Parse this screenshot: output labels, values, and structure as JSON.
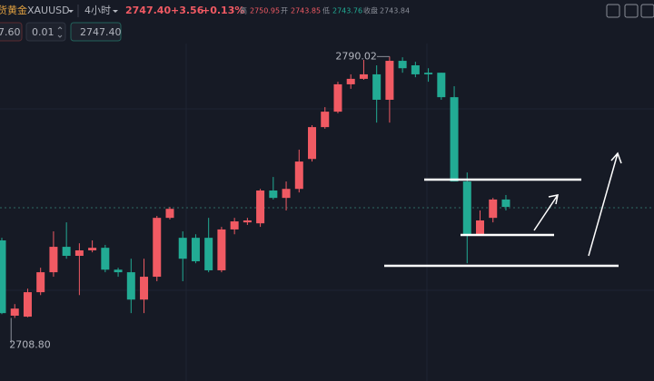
{
  "header": {
    "name": "现货黄金",
    "symbol": "XAUUSD",
    "interval": "4小时",
    "last": "2747.40",
    "change": "+3.56",
    "change_pct": "+0.13%",
    "high_label": "高",
    "high": "2750.95",
    "open_label": "开",
    "open": "2743.85",
    "low_label": "低",
    "low": "2743.76",
    "close_label": "收盘",
    "close": "2743.84"
  },
  "order_bar": {
    "sell_price": "7.60",
    "quantity": "0.01",
    "buy_price": "2747.40"
  },
  "chart_data": {
    "type": "candlestick",
    "up_color": "#f05a63",
    "down_color": "#22ab94",
    "ylim": [
      2689.2,
      2807.6
    ],
    "open": [
      2732.9,
      2709.5,
      2709.2,
      2716.8,
      2723.0,
      2730.9,
      2728.1,
      2729.8,
      2730.6,
      2723.8,
      2723.0,
      2714.5,
      2721.6,
      2739.9,
      2733.7,
      2733.7,
      2733.7,
      2723.6,
      2736.3,
      2738.5,
      2738.2,
      2748.4,
      2746.1,
      2748.9,
      2758.2,
      2768.1,
      2772.9,
      2781.4,
      2783.1,
      2784.5,
      2776.6,
      2788.7,
      2787.3,
      2785.0,
      2785.0,
      2777.4,
      2751.2,
      2734.8,
      2739.9,
      2745.6
    ],
    "high": [
      2733.7,
      2713.1,
      2717.9,
      2724.4,
      2735.7,
      2738.5,
      2732.0,
      2732.9,
      2731.5,
      2724.4,
      2727.2,
      2727.2,
      2740.5,
      2743.3,
      2735.7,
      2734.8,
      2739.9,
      2737.1,
      2739.9,
      2739.9,
      2748.9,
      2752.6,
      2751.2,
      2761.1,
      2768.7,
      2774.3,
      2782.2,
      2784.5,
      2789.0,
      2787.3,
      2790.02,
      2789.8,
      2788.4,
      2786.4,
      2785.0,
      2780.8,
      2754.0,
      2742.2,
      2746.1,
      2747.0
    ],
    "low": [
      2710.0,
      2708.8,
      2709.0,
      2715.9,
      2721.6,
      2727.2,
      2715.9,
      2729.2,
      2723.0,
      2721.6,
      2710.3,
      2710.3,
      2720.2,
      2739.4,
      2720.2,
      2725.8,
      2723.0,
      2723.0,
      2734.8,
      2737.7,
      2737.1,
      2745.6,
      2742.2,
      2747.8,
      2757.4,
      2767.6,
      2772.4,
      2780.0,
      2782.8,
      2769.5,
      2769.5,
      2785.0,
      2783.6,
      2782.2,
      2776.6,
      2751.2,
      2725.8,
      2734.3,
      2738.5,
      2742.2
    ],
    "close": [
      2710.3,
      2711.7,
      2716.8,
      2723.0,
      2730.9,
      2728.1,
      2729.8,
      2730.6,
      2723.8,
      2723.0,
      2714.5,
      2721.6,
      2739.9,
      2742.7,
      2727.2,
      2726.4,
      2723.6,
      2736.3,
      2738.8,
      2739.1,
      2748.4,
      2746.1,
      2748.9,
      2757.4,
      2768.1,
      2772.9,
      2781.4,
      2783.1,
      2784.5,
      2776.6,
      2788.7,
      2786.4,
      2784.5,
      2784.5,
      2777.4,
      2751.2,
      2734.8,
      2739.1,
      2745.6,
      2743.3
    ],
    "max_marker": {
      "index": 30,
      "value": 2790.02,
      "label": "2790.02"
    },
    "min_marker": {
      "index": 1,
      "value": 2708.8,
      "label": "2708.80"
    }
  }
}
